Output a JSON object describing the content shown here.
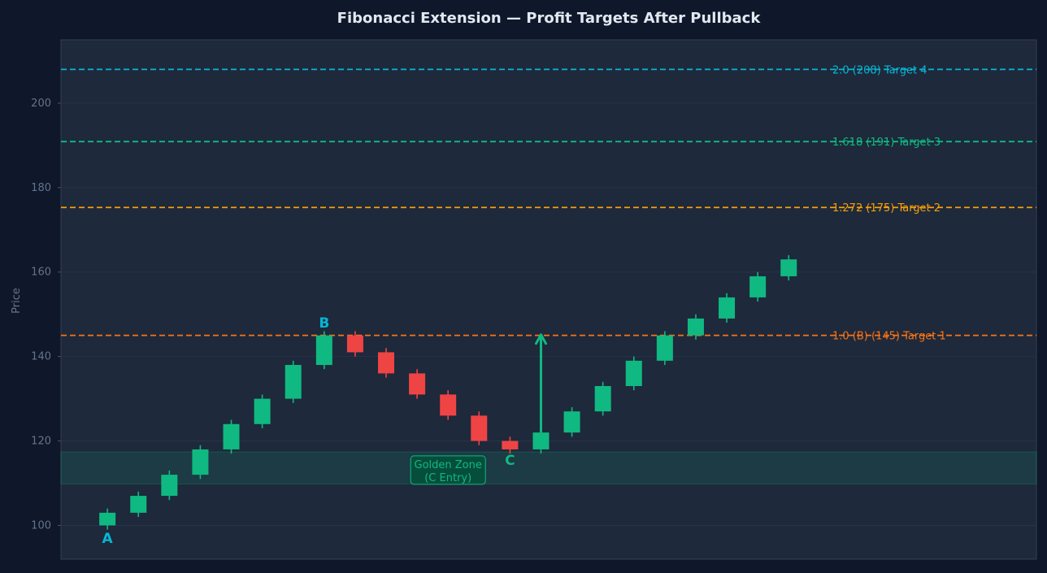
{
  "chart_data": {
    "type": "candlestick",
    "title": "Fibonacci Extension — Profit Targets After Pullback",
    "ylabel": "Price",
    "xlabel": "",
    "ylim": [
      92,
      215
    ],
    "xlim": [
      -1.5,
      30
    ],
    "yticks": [
      100,
      120,
      140,
      160,
      180,
      200
    ],
    "grid": true,
    "colors": {
      "background": "#0f172a",
      "plot_bg": "#1e293b",
      "bullish": "#10b981",
      "bearish": "#ef4444",
      "grid": "#253349",
      "tick_text": "#64748b",
      "title_text": "#e2e8f0"
    },
    "candles": [
      {
        "x": 0,
        "open": 100,
        "high": 104,
        "low": 99,
        "close": 103
      },
      {
        "x": 1,
        "open": 103,
        "high": 108,
        "low": 102,
        "close": 107
      },
      {
        "x": 2,
        "open": 107,
        "high": 113,
        "low": 106,
        "close": 112
      },
      {
        "x": 3,
        "open": 112,
        "high": 119,
        "low": 111,
        "close": 118
      },
      {
        "x": 4,
        "open": 118,
        "high": 125,
        "low": 117,
        "close": 124
      },
      {
        "x": 5,
        "open": 124,
        "high": 131,
        "low": 123,
        "close": 130
      },
      {
        "x": 6,
        "open": 130,
        "high": 139,
        "low": 129,
        "close": 138
      },
      {
        "x": 7,
        "open": 138,
        "high": 146,
        "low": 137,
        "close": 145
      },
      {
        "x": 8,
        "open": 145,
        "high": 146,
        "low": 140,
        "close": 141
      },
      {
        "x": 9,
        "open": 141,
        "high": 142,
        "low": 135,
        "close": 136
      },
      {
        "x": 10,
        "open": 136,
        "high": 137,
        "low": 130,
        "close": 131
      },
      {
        "x": 11,
        "open": 131,
        "high": 132,
        "low": 125,
        "close": 126
      },
      {
        "x": 12,
        "open": 126,
        "high": 127,
        "low": 119,
        "close": 120
      },
      {
        "x": 13,
        "open": 120,
        "high": 121,
        "low": 117,
        "close": 118
      },
      {
        "x": 14,
        "open": 118,
        "high": 123,
        "low": 117,
        "close": 122
      },
      {
        "x": 15,
        "open": 122,
        "high": 128,
        "low": 121,
        "close": 127
      },
      {
        "x": 16,
        "open": 127,
        "high": 134,
        "low": 126,
        "close": 133
      },
      {
        "x": 17,
        "open": 133,
        "high": 140,
        "low": 132,
        "close": 139
      },
      {
        "x": 18,
        "open": 139,
        "high": 146,
        "low": 138,
        "close": 145
      },
      {
        "x": 19,
        "open": 145,
        "high": 150,
        "low": 144,
        "close": 149
      },
      {
        "x": 20,
        "open": 149,
        "high": 155,
        "low": 148,
        "close": 154
      },
      {
        "x": 21,
        "open": 154,
        "high": 160,
        "low": 153,
        "close": 159
      },
      {
        "x": 22,
        "open": 159,
        "high": 164,
        "low": 158,
        "close": 163
      }
    ],
    "levels": [
      {
        "value": 145,
        "label": "1.0 (B)  (145)  Target 1",
        "color": "#f97316"
      },
      {
        "value": 175.3,
        "label": "1.272  (175)  Target 2",
        "color": "#f59e0b"
      },
      {
        "value": 190.9,
        "label": "1.618  (191)  Target 3",
        "color": "#10b981"
      },
      {
        "value": 208,
        "label": "2.0  (208)  Target 4",
        "color": "#06b6d4"
      }
    ],
    "golden_zone": {
      "low": 109.8,
      "high": 117.4,
      "label": "Golden Zone\n(C Entry)",
      "label_x": 11,
      "label_y": 113
    },
    "points": [
      {
        "label": "A",
        "x": 0,
        "y": 97,
        "color": "#06b6d4"
      },
      {
        "label": "B",
        "x": 7,
        "y": 148,
        "color": "#06b6d4"
      },
      {
        "label": "C",
        "x": 13,
        "y": 115.5,
        "color": "#10b981"
      }
    ],
    "arrow": {
      "x": 14,
      "from": 122,
      "to": 145,
      "color": "#10b981"
    }
  }
}
